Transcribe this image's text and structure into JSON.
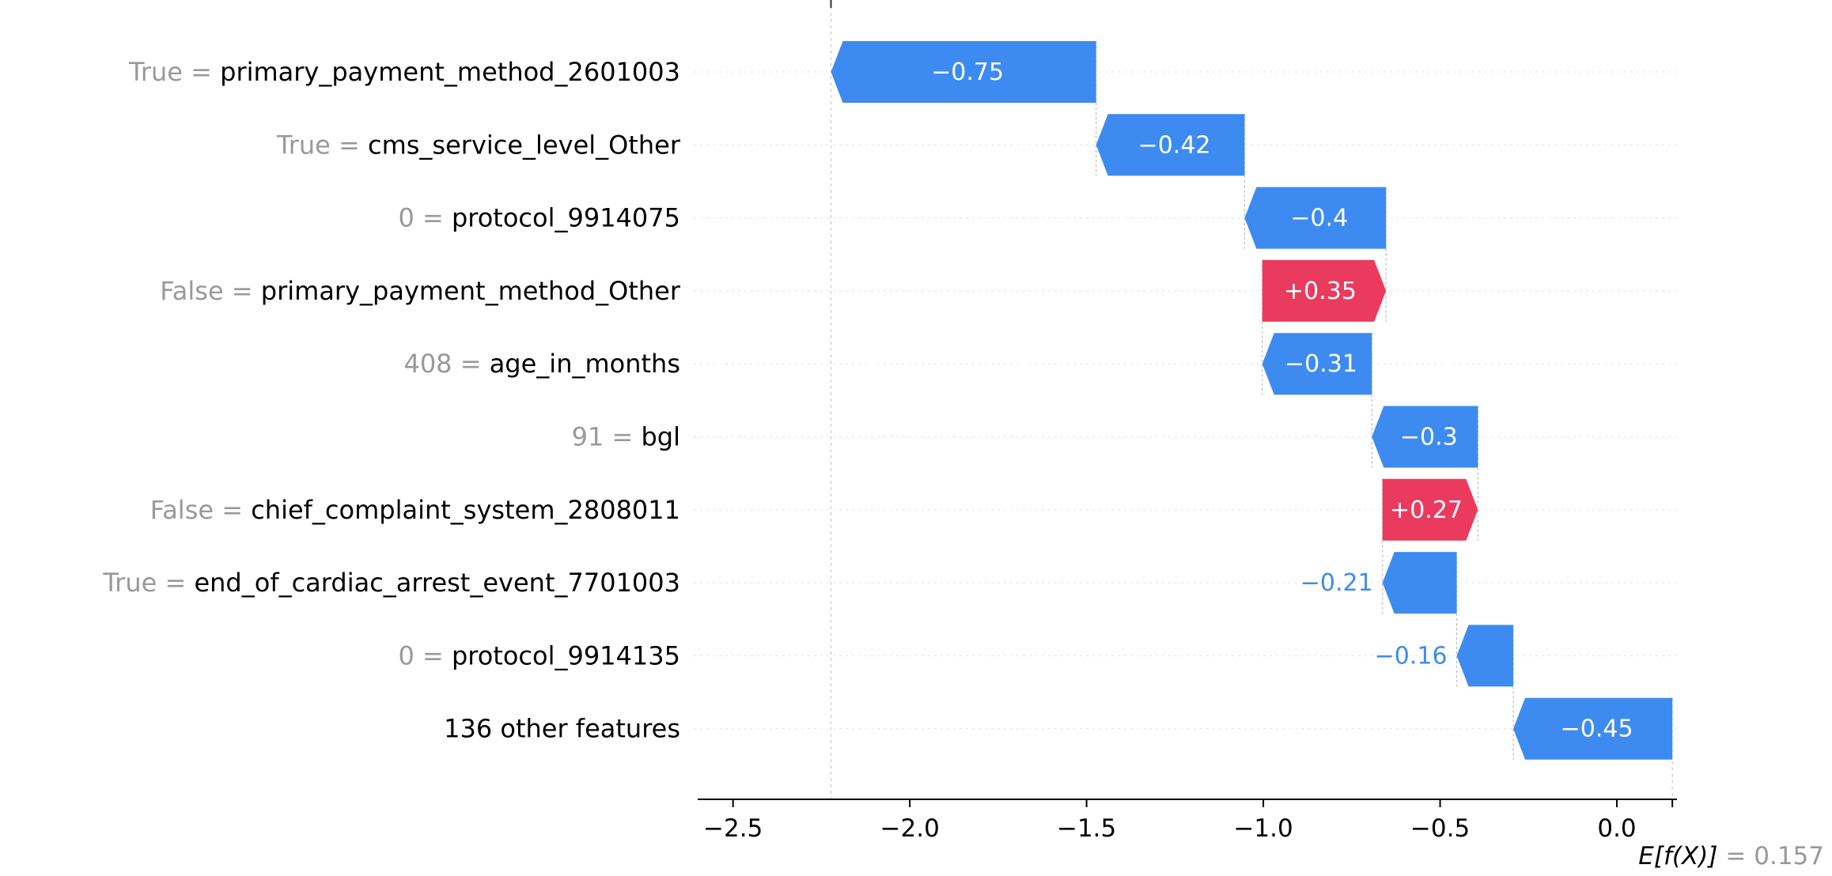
{
  "chart_data": {
    "type": "waterfall",
    "title": "",
    "xlabel": "",
    "ylabel": "",
    "base_value": {
      "value": 0.157,
      "label": "E[f(X)]",
      "value_text": "= 0.157"
    },
    "final_value": -2.228,
    "features": [
      {
        "value_text": "True",
        "name": "primary_payment_method_2601003",
        "contribution": -0.75,
        "label": "−0.75"
      },
      {
        "value_text": "True",
        "name": "cms_service_level_Other",
        "contribution": -0.42,
        "label": "−0.42"
      },
      {
        "value_text": "0",
        "name": "protocol_9914075",
        "contribution": -0.4,
        "label": "−0.4"
      },
      {
        "value_text": "False",
        "name": "primary_payment_method_Other",
        "contribution": 0.35,
        "label": "+0.35"
      },
      {
        "value_text": "408",
        "name": "age_in_months",
        "contribution": -0.31,
        "label": "−0.31"
      },
      {
        "value_text": "91",
        "name": "bgl",
        "contribution": -0.3,
        "label": "−0.3"
      },
      {
        "value_text": "False",
        "name": "chief_complaint_system_2808011",
        "contribution": 0.27,
        "label": "+0.27"
      },
      {
        "value_text": "True",
        "name": "end_of_cardiac_arrest_event_7701003",
        "contribution": -0.21,
        "label": "−0.21"
      },
      {
        "value_text": "0",
        "name": "protocol_9914135",
        "contribution": -0.16,
        "label": "−0.16"
      },
      {
        "value_text": "",
        "name": "136 other features",
        "contribution": -0.45,
        "label": "−0.45"
      }
    ],
    "x_ticks": [
      {
        "value": -2.5,
        "label": "−2.5"
      },
      {
        "value": -2.0,
        "label": "−2.0"
      },
      {
        "value": -1.5,
        "label": "−1.5"
      },
      {
        "value": -1.0,
        "label": "−1.0"
      },
      {
        "value": -0.5,
        "label": "−0.5"
      },
      {
        "value": 0.0,
        "label": "0.0"
      }
    ],
    "xlim": [
      -2.6,
      0.17
    ],
    "grid": false,
    "colors": {
      "negative": "#3d8bf0",
      "positive": "#ea3b5e",
      "feature_value_text": "#999999",
      "feature_name_text": "#000000",
      "row_guides": "#e6e6e6",
      "connectors": "#bbbbbb"
    }
  }
}
